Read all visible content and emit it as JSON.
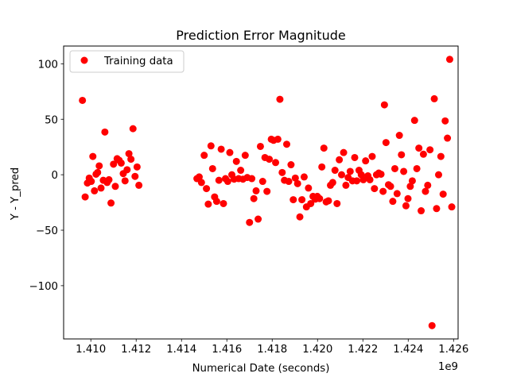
{
  "chart_data": {
    "type": "scatter",
    "title": "Prediction Error Magnitude",
    "xlabel": "Numerical Date (seconds)",
    "ylabel": "Y - Y_pred",
    "x_offset_label": "1e9",
    "xlim": [
      1.4088,
      1.4262
    ],
    "ylim": [
      -148,
      116
    ],
    "xticks": [
      1.41,
      1.412,
      1.414,
      1.416,
      1.418,
      1.42,
      1.422,
      1.424,
      1.426
    ],
    "xtick_labels": [
      "1.410",
      "1.412",
      "1.414",
      "1.416",
      "1.418",
      "1.420",
      "1.422",
      "1.424",
      "1.426"
    ],
    "yticks": [
      100,
      50,
      0,
      -50,
      -100
    ],
    "ytick_labels": [
      "100",
      "50",
      "0",
      "−50",
      "−100"
    ],
    "legend": {
      "label": "Training data",
      "position": "upper-left"
    },
    "marker_color": "#ff0000",
    "series": [
      {
        "name": "Training data",
        "points": [
          [
            1.40963,
            67.0
          ],
          [
            1.40975,
            -20.0
          ],
          [
            1.40985,
            -7.5
          ],
          [
            1.40993,
            -3.0
          ],
          [
            1.41002,
            -6.0
          ],
          [
            1.41009,
            16.5
          ],
          [
            1.41016,
            -14.5
          ],
          [
            1.41023,
            0.5
          ],
          [
            1.4103,
            2.0
          ],
          [
            1.41037,
            8.0
          ],
          [
            1.41045,
            -12.0
          ],
          [
            1.41055,
            -5.0
          ],
          [
            1.41062,
            38.5
          ],
          [
            1.41072,
            -7.0
          ],
          [
            1.4108,
            -4.5
          ],
          [
            1.41089,
            -25.5
          ],
          [
            1.411,
            9.5
          ],
          [
            1.41108,
            -10.5
          ],
          [
            1.41116,
            14.5
          ],
          [
            1.41125,
            13.0
          ],
          [
            1.41134,
            10.5
          ],
          [
            1.41143,
            1.0
          ],
          [
            1.41151,
            -5.5
          ],
          [
            1.4116,
            4.5
          ],
          [
            1.41168,
            19.0
          ],
          [
            1.41177,
            14.0
          ],
          [
            1.41186,
            41.5
          ],
          [
            1.41195,
            -1.5
          ],
          [
            1.41204,
            7.0
          ],
          [
            1.41212,
            -9.5
          ],
          [
            1.41468,
            -3.5
          ],
          [
            1.41478,
            -2.0
          ],
          [
            1.41488,
            -7.0
          ],
          [
            1.415,
            17.5
          ],
          [
            1.4151,
            -12.5
          ],
          [
            1.41518,
            -26.5
          ],
          [
            1.4153,
            26.0
          ],
          [
            1.41537,
            5.5
          ],
          [
            1.41546,
            -20.0
          ],
          [
            1.41555,
            -24.0
          ],
          [
            1.41565,
            -5.0
          ],
          [
            1.41575,
            23.0
          ],
          [
            1.41585,
            -26.0
          ],
          [
            1.41594,
            -3.5
          ],
          [
            1.41604,
            -6.0
          ],
          [
            1.41613,
            20.0
          ],
          [
            1.41622,
            0.0
          ],
          [
            1.41632,
            -4.0
          ],
          [
            1.41642,
            12.0
          ],
          [
            1.41652,
            -3.5
          ],
          [
            1.41661,
            4.0
          ],
          [
            1.41671,
            -4.0
          ],
          [
            1.41681,
            17.5
          ],
          [
            1.4169,
            -2.5
          ],
          [
            1.417,
            -43.0
          ],
          [
            1.4171,
            -3.5
          ],
          [
            1.41719,
            -21.5
          ],
          [
            1.41729,
            -14.5
          ],
          [
            1.41738,
            -40.0
          ],
          [
            1.41748,
            25.5
          ],
          [
            1.41758,
            -6.0
          ],
          [
            1.41768,
            15.5
          ],
          [
            1.41777,
            -15.0
          ],
          [
            1.41787,
            14.0
          ],
          [
            1.41796,
            32.0
          ],
          [
            1.41806,
            31.0
          ],
          [
            1.41815,
            11.0
          ],
          [
            1.41825,
            32.0
          ],
          [
            1.41834,
            68.0
          ],
          [
            1.41844,
            2.0
          ],
          [
            1.41854,
            -5.0
          ],
          [
            1.41864,
            27.5
          ],
          [
            1.41873,
            -6.0
          ],
          [
            1.41883,
            9.0
          ],
          [
            1.41893,
            -22.5
          ],
          [
            1.41902,
            -3.0
          ],
          [
            1.41912,
            -8.0
          ],
          [
            1.41922,
            -38.0
          ],
          [
            1.41931,
            -22.5
          ],
          [
            1.41941,
            -2.0
          ],
          [
            1.41951,
            -29.0
          ],
          [
            1.4196,
            -12.0
          ],
          [
            1.4197,
            -26.0
          ],
          [
            1.4198,
            -19.5
          ],
          [
            1.4199,
            -22.0
          ],
          [
            1.41999,
            -19.5
          ],
          [
            1.42009,
            -21.5
          ],
          [
            1.42019,
            7.0
          ],
          [
            1.42028,
            24.0
          ],
          [
            1.42038,
            -24.5
          ],
          [
            1.42048,
            -23.5
          ],
          [
            1.42057,
            -9.5
          ],
          [
            1.42067,
            -7.0
          ],
          [
            1.42077,
            4.0
          ],
          [
            1.42086,
            -26.0
          ],
          [
            1.42096,
            13.5
          ],
          [
            1.42106,
            0.0
          ],
          [
            1.42115,
            20.0
          ],
          [
            1.42125,
            -9.5
          ],
          [
            1.42135,
            -2.5
          ],
          [
            1.42144,
            3.0
          ],
          [
            1.42154,
            -5.5
          ],
          [
            1.42164,
            15.5
          ],
          [
            1.42173,
            -5.5
          ],
          [
            1.42183,
            4.0
          ],
          [
            1.42193,
            0.0
          ],
          [
            1.42202,
            -4.5
          ],
          [
            1.42212,
            12.5
          ],
          [
            1.42222,
            -1.0
          ],
          [
            1.42231,
            -4.5
          ],
          [
            1.42241,
            16.5
          ],
          [
            1.42251,
            -12.5
          ],
          [
            1.4226,
            0.0
          ],
          [
            1.4227,
            1.5
          ],
          [
            1.4228,
            0.5
          ],
          [
            1.42289,
            -15.0
          ],
          [
            1.42295,
            63.0
          ],
          [
            1.42302,
            29.0
          ],
          [
            1.42313,
            -9.0
          ],
          [
            1.42322,
            -10.5
          ],
          [
            1.42332,
            -24.0
          ],
          [
            1.42341,
            5.5
          ],
          [
            1.42351,
            -17.0
          ],
          [
            1.42361,
            35.5
          ],
          [
            1.4237,
            18.0
          ],
          [
            1.4238,
            3.0
          ],
          [
            1.4239,
            -28.0
          ],
          [
            1.42399,
            -21.5
          ],
          [
            1.42409,
            -10.5
          ],
          [
            1.42418,
            -5.5
          ],
          [
            1.42428,
            49.0
          ],
          [
            1.42438,
            5.5
          ],
          [
            1.42447,
            24.0
          ],
          [
            1.42457,
            -32.5
          ],
          [
            1.42467,
            18.5
          ],
          [
            1.42476,
            -15.0
          ],
          [
            1.42486,
            -9.5
          ],
          [
            1.42496,
            22.5
          ],
          [
            1.42505,
            -136.0
          ],
          [
            1.42515,
            68.5
          ],
          [
            1.42525,
            -30.5
          ],
          [
            1.42534,
            0.0
          ],
          [
            1.42544,
            16.5
          ],
          [
            1.42554,
            -17.5
          ],
          [
            1.42563,
            48.5
          ],
          [
            1.42573,
            33.0
          ],
          [
            1.42583,
            104.0
          ],
          [
            1.42592,
            -29.0
          ]
        ]
      }
    ]
  }
}
